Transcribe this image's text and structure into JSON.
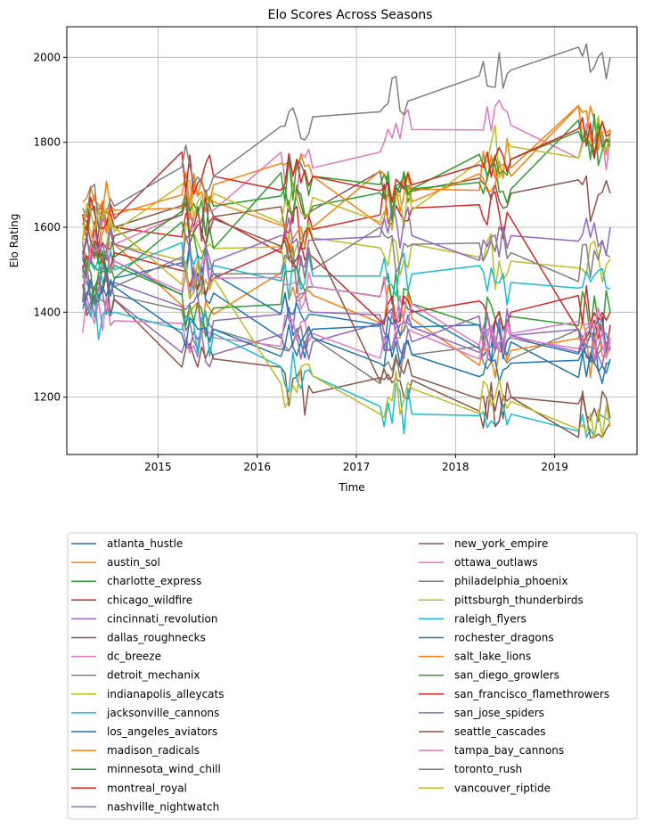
{
  "chart_data": {
    "type": "line",
    "title": "Elo Scores Across Seasons",
    "xlabel": "Time",
    "ylabel": "Elo Rating",
    "xlim": [
      2014.08,
      2019.83
    ],
    "ylim": [
      1065,
      2072
    ],
    "xticks": [
      2015,
      2016,
      2017,
      2018,
      2019
    ],
    "yticks": [
      1200,
      1400,
      1600,
      1800,
      2000
    ],
    "grid": true,
    "legend_position": "below",
    "seasons": [
      2014,
      2015,
      2016,
      2017,
      2018,
      2019
    ],
    "series": [
      {
        "name": "atlanta_hustle",
        "color": "#1f77b4",
        "values": [
          1520,
          1445,
          1360,
          1405,
          1330,
          1290
        ]
      },
      {
        "name": "austin_sol",
        "color": "#ff7f0e",
        "values": [
          1560,
          1395,
          1440,
          1385,
          1310,
          1320
        ]
      },
      {
        "name": "charlotte_express",
        "color": "#2ca02c",
        "values": [
          1510,
          1410,
          1460,
          1420,
          1390,
          1400
        ]
      },
      {
        "name": "chicago_wildfire",
        "color": "#d62728",
        "values": [
          1600,
          1625,
          1595,
          1645,
          1620,
          1370
        ]
      },
      {
        "name": "cincinnati_revolution",
        "color": "#9467bd",
        "values": [
          1470,
          1380,
          1400,
          1365,
          1345,
          1310
        ]
      },
      {
        "name": "dallas_roughnecks",
        "color": "#8c564b",
        "values": [
          1600,
          1625,
          1640,
          1685,
          1680,
          1680
        ]
      },
      {
        "name": "dc_breeze",
        "color": "#e377c2",
        "values": [
          1560,
          1640,
          1740,
          1830,
          1840,
          1810
        ]
      },
      {
        "name": "detroit_mechanix",
        "color": "#7f7f7f",
        "values": [
          1440,
          1360,
          1340,
          1300,
          1290,
          1315
        ]
      },
      {
        "name": "indianapolis_alleycats",
        "color": "#bcbd22",
        "values": [
          1560,
          1550,
          1575,
          1560,
          1520,
          1525
        ]
      },
      {
        "name": "jacksonville_cannons",
        "color": "#17becf",
        "values": [
          1500,
          1510,
          1485,
          1490,
          1470,
          1455
        ]
      },
      {
        "name": "los_angeles_aviators",
        "color": "#1f77b4",
        "values": [
          1480,
          1490,
          1395,
          1365,
          1340,
          1330
        ]
      },
      {
        "name": "madison_radicals",
        "color": "#ff7f0e",
        "values": [
          1640,
          1660,
          1600,
          1690,
          1740,
          1830
        ]
      },
      {
        "name": "minnesota_wind_chill",
        "color": "#2ca02c",
        "values": [
          1530,
          1650,
          1650,
          1690,
          1690,
          1790
        ]
      },
      {
        "name": "montreal_royal",
        "color": "#d62728",
        "values": [
          1540,
          1480,
          1530,
          1400,
          1400,
          1400
        ]
      },
      {
        "name": "nashville_nightwatch",
        "color": "#9467bd",
        "values": [
          1430,
          1300,
          1330,
          1330,
          1345,
          1315
        ]
      },
      {
        "name": "new_york_empire",
        "color": "#8c564b",
        "values": [
          1430,
          1290,
          1210,
          1240,
          1200,
          1150
        ]
      },
      {
        "name": "ottawa_outlaws",
        "color": "#e377c2",
        "values": [
          1380,
          1340,
          1350,
          1355,
          1340,
          1330
        ]
      },
      {
        "name": "philadelphia_phoenix",
        "color": "#7f7f7f",
        "values": [
          1460,
          1490,
          1500,
          1560,
          1540,
          1530
        ]
      },
      {
        "name": "pittsburgh_thunderbirds",
        "color": "#bcbd22",
        "values": [
          1590,
          1680,
          1670,
          1640,
          1790,
          1820
        ]
      },
      {
        "name": "raleigh_flyers",
        "color": "#17becf",
        "values": [
          1400,
          1350,
          1250,
          1160,
          1160,
          1145
        ]
      },
      {
        "name": "rochester_dragons",
        "color": "#1f77b4",
        "values": [
          1460,
          1360,
          1340,
          1300,
          1280,
          1280
        ]
      },
      {
        "name": "salt_lake_lions",
        "color": "#ff7f0e",
        "values": [
          1630,
          1700,
          1720,
          1660,
          1720,
          1830
        ]
      },
      {
        "name": "san_diego_growlers",
        "color": "#2ca02c",
        "values": [
          1480,
          1550,
          1720,
          1690,
          1760,
          1800
        ]
      },
      {
        "name": "san_francisco_flamethrowers",
        "color": "#d62728",
        "values": [
          1620,
          1720,
          1720,
          1700,
          1760,
          1820
        ]
      },
      {
        "name": "san_jose_spiders",
        "color": "#9467bd",
        "values": [
          1560,
          1520,
          1570,
          1580,
          1580,
          1600
        ]
      },
      {
        "name": "seattle_cascades",
        "color": "#8c564b",
        "values": [
          1580,
          1620,
          1570,
          1250,
          1200,
          1140
        ]
      },
      {
        "name": "tampa_bay_cannons",
        "color": "#e377c2",
        "values": [
          1520,
          1480,
          1460,
          1420,
          1350,
          1340
        ]
      },
      {
        "name": "toronto_rush",
        "color": "#7f7f7f",
        "values": [
          1650,
          1720,
          1860,
          1900,
          1970,
          2000
        ]
      },
      {
        "name": "vancouver_riptide",
        "color": "#bcbd22",
        "values": [
          1600,
          1480,
          1250,
          1220,
          1190,
          1130
        ]
      }
    ]
  }
}
